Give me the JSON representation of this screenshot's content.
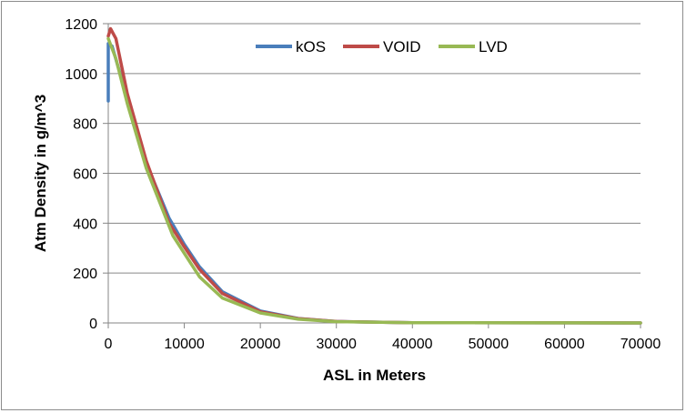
{
  "chart_data": {
    "type": "line",
    "title": "",
    "xlabel": "ASL in Meters",
    "ylabel": "Atm Density in g/m^3",
    "xlim": [
      0,
      70000
    ],
    "ylim": [
      0,
      1200
    ],
    "x_ticks": [
      0,
      10000,
      20000,
      30000,
      40000,
      50000,
      60000,
      70000
    ],
    "y_ticks": [
      0,
      200,
      400,
      600,
      800,
      1000,
      1200
    ],
    "grid": "horizontal",
    "legend_position": "top-right",
    "series": [
      {
        "name": "kOS",
        "color": "#4a7ebb",
        "points": [
          [
            0,
            890
          ],
          [
            0,
            1120
          ],
          [
            500,
            1110
          ],
          [
            2500,
            900
          ],
          [
            5000,
            640
          ],
          [
            8000,
            420
          ],
          [
            10000,
            315
          ],
          [
            12000,
            225
          ],
          [
            15000,
            125
          ],
          [
            20000,
            48
          ],
          [
            25000,
            18
          ],
          [
            30000,
            6
          ],
          [
            40000,
            1
          ],
          [
            70000,
            0
          ]
        ]
      },
      {
        "name": "VOID",
        "color": "#be4b48",
        "points": [
          [
            0,
            1150
          ],
          [
            300,
            1180
          ],
          [
            1000,
            1140
          ],
          [
            2500,
            920
          ],
          [
            5000,
            650
          ],
          [
            8000,
            400
          ],
          [
            10000,
            305
          ],
          [
            12000,
            215
          ],
          [
            15000,
            118
          ],
          [
            20000,
            45
          ],
          [
            25000,
            17
          ],
          [
            30000,
            6
          ],
          [
            40000,
            1
          ],
          [
            70000,
            0
          ]
        ]
      },
      {
        "name": "LVD",
        "color": "#98b954",
        "points": [
          [
            0,
            1140
          ],
          [
            1000,
            1060
          ],
          [
            2500,
            880
          ],
          [
            5000,
            620
          ],
          [
            8500,
            350
          ],
          [
            12000,
            185
          ],
          [
            15000,
            100
          ],
          [
            20000,
            40
          ],
          [
            25000,
            15
          ],
          [
            30000,
            5
          ],
          [
            40000,
            1
          ],
          [
            70000,
            0
          ]
        ]
      }
    ]
  }
}
